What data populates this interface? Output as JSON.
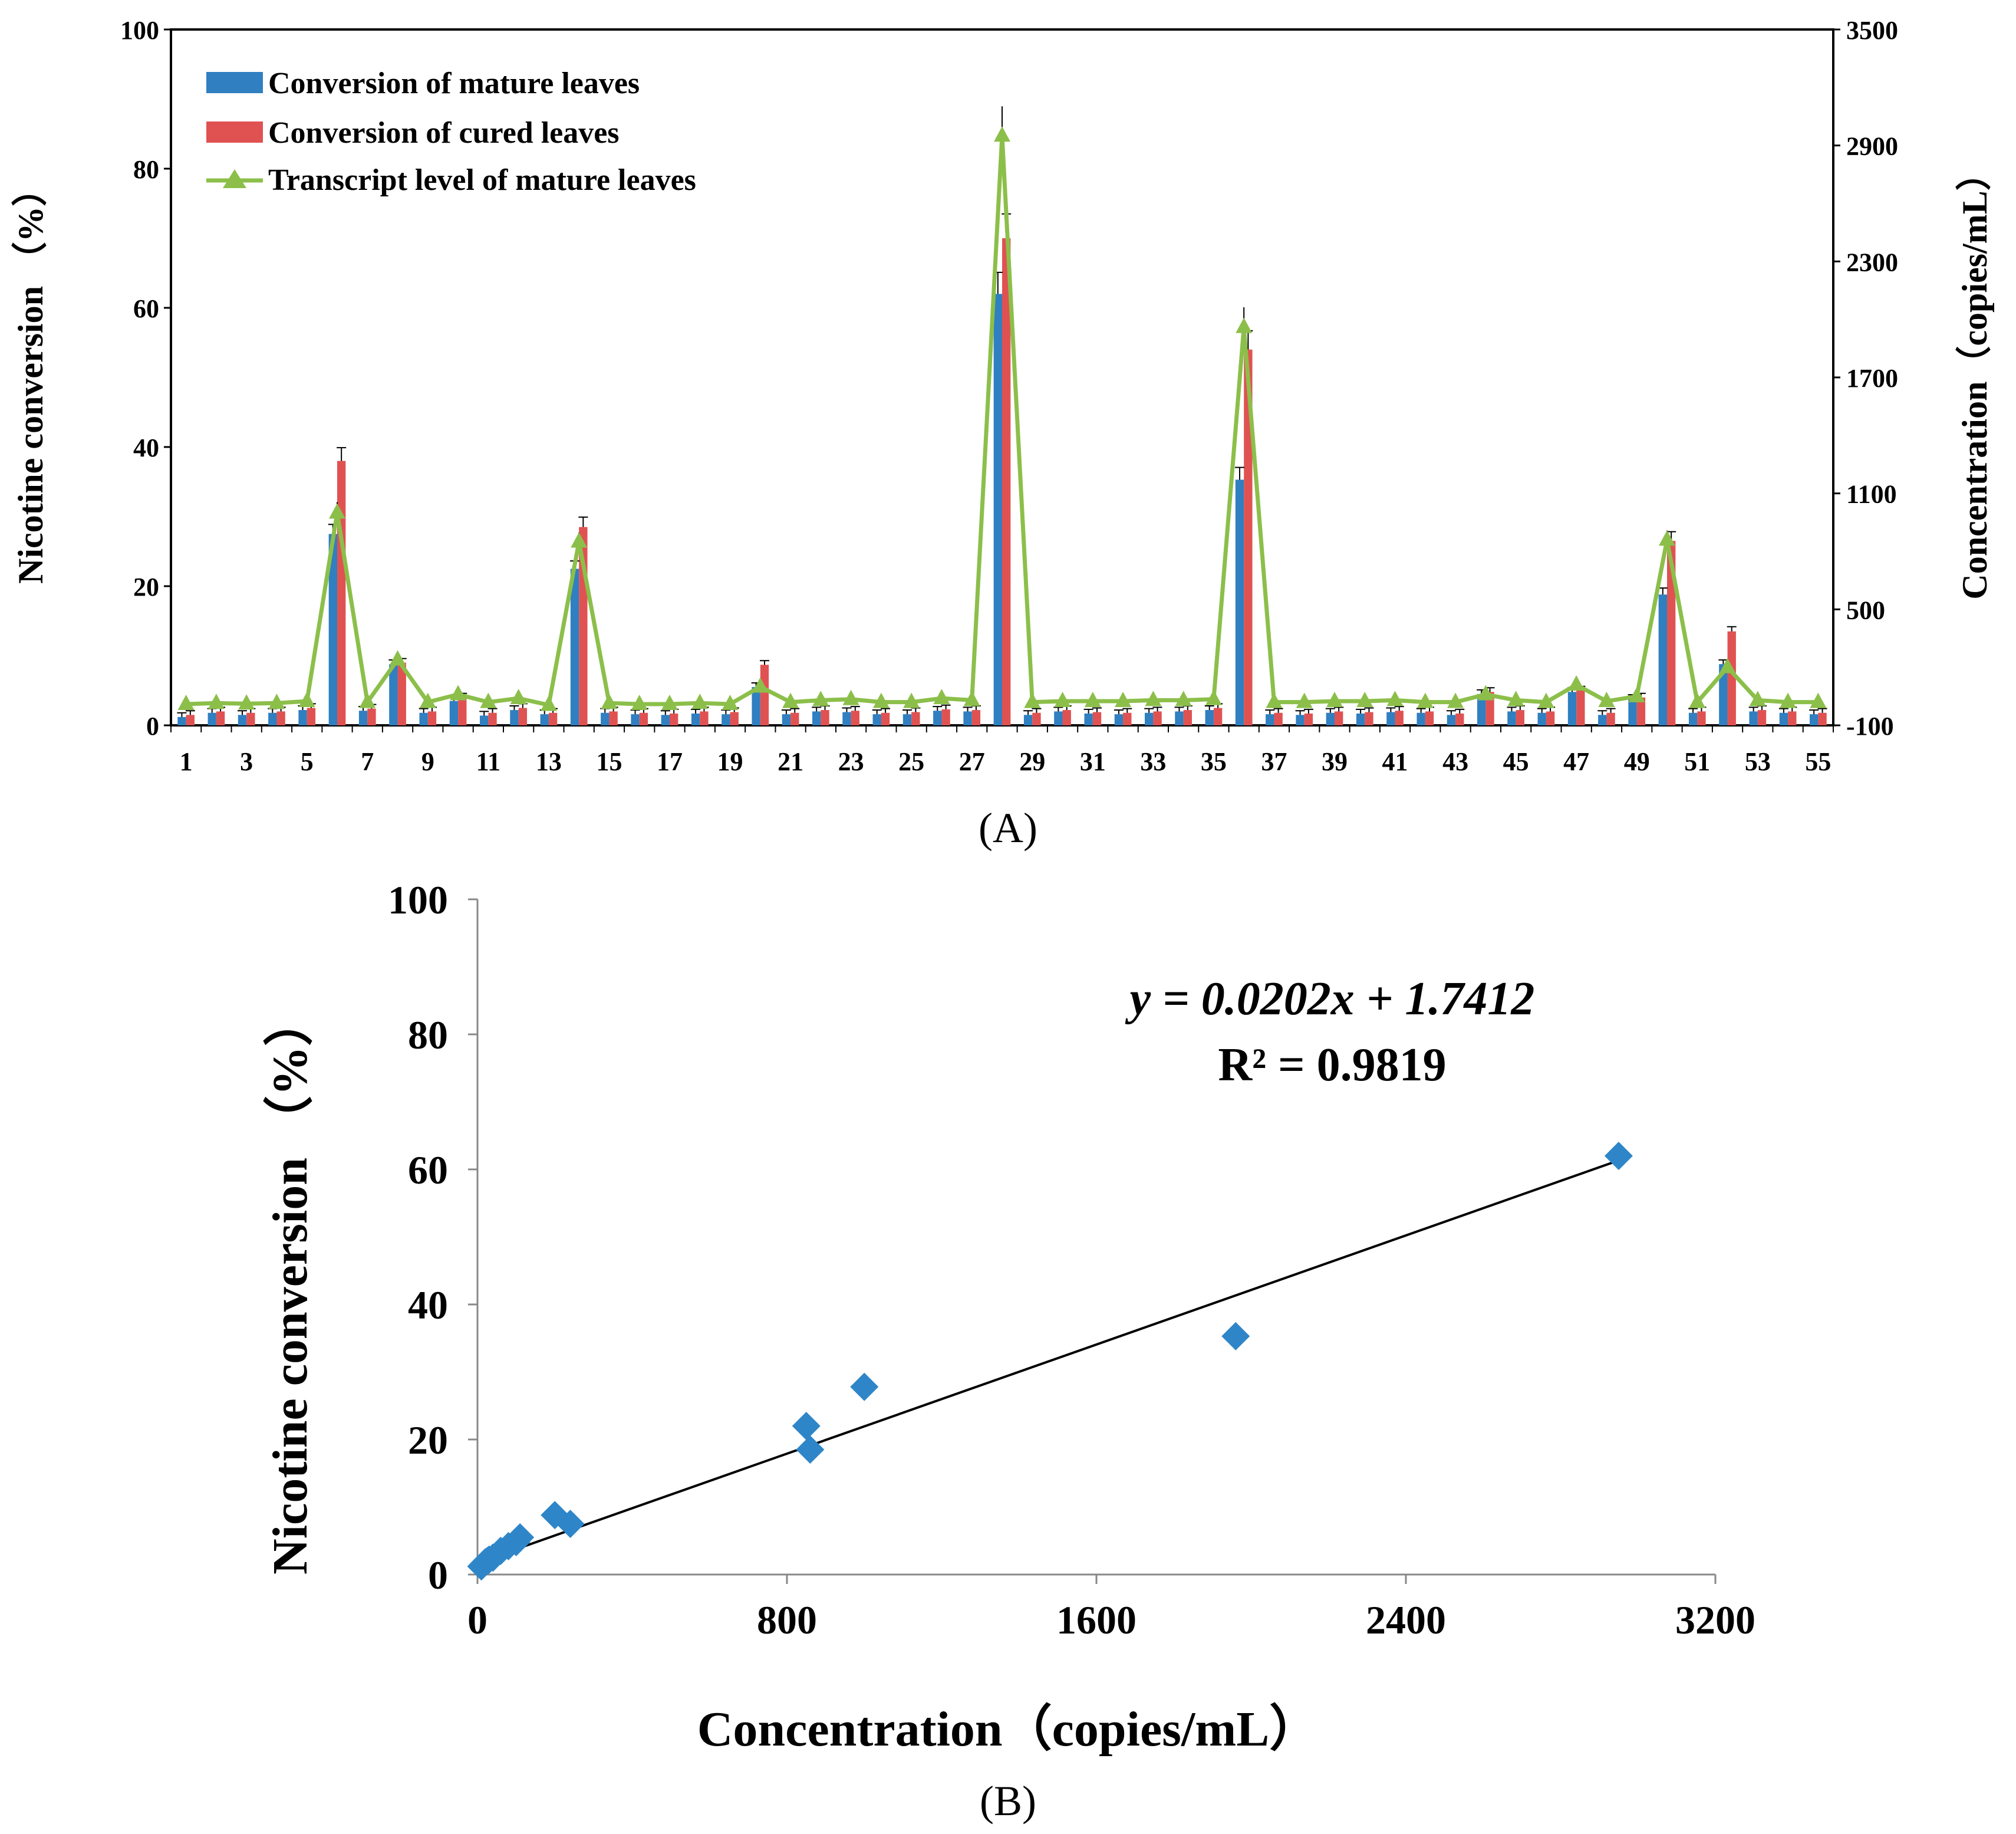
{
  "panels": {
    "a": "(A)",
    "b": "(B)"
  },
  "colors": {
    "mature": "#2f7fc1",
    "cured": "#e05252",
    "transcript": "#8cbf4a",
    "scatter": "#2e86c8"
  },
  "chart_data": [
    {
      "type": "bar",
      "id": "A",
      "title": "",
      "xlabel": "",
      "ylabel": "Nicotine conversion （%）",
      "y2label": "Concentration（copies/mL）",
      "ylim": [
        0,
        100
      ],
      "y2lim": [
        -100,
        3500
      ],
      "yticks": [
        "0",
        "20",
        "40",
        "60",
        "80",
        "100"
      ],
      "y2ticks": [
        "-100",
        "500",
        "1100",
        "1700",
        "2300",
        "2900",
        "3500"
      ],
      "categories": [
        "1",
        "2",
        "3",
        "4",
        "5",
        "6",
        "7",
        "8",
        "9",
        "10",
        "11",
        "12",
        "13",
        "14",
        "15",
        "16",
        "17",
        "18",
        "19",
        "20",
        "21",
        "22",
        "23",
        "24",
        "25",
        "26",
        "27",
        "28",
        "29",
        "30",
        "31",
        "32",
        "33",
        "34",
        "35",
        "36",
        "37",
        "38",
        "39",
        "40",
        "41",
        "42",
        "43",
        "44",
        "45",
        "46",
        "47",
        "48",
        "49",
        "50",
        "51",
        "52",
        "53",
        "54",
        "55"
      ],
      "xtick_labels": [
        "1",
        "3",
        "5",
        "7",
        "9",
        "11",
        "13",
        "15",
        "17",
        "19",
        "21",
        "23",
        "25",
        "27",
        "29",
        "31",
        "33",
        "35",
        "37",
        "39",
        "41",
        "43",
        "45",
        "47",
        "49",
        "51",
        "53",
        "55"
      ],
      "legend": [
        "Conversion of mature leaves",
        "Conversion of cured leaves",
        "Transcript level of mature leaves"
      ],
      "series": [
        {
          "name": "Conversion of mature leaves",
          "axis": "left",
          "values": [
            1.2,
            1.8,
            1.5,
            1.8,
            2.2,
            27.5,
            2.1,
            8.8,
            1.8,
            3.5,
            1.4,
            2.2,
            1.6,
            22.5,
            1.8,
            1.6,
            1.5,
            1.7,
            1.6,
            5.5,
            1.6,
            2.0,
            1.9,
            1.6,
            1.6,
            2.1,
            2.0,
            62.0,
            1.5,
            2.0,
            1.7,
            1.6,
            1.8,
            2.0,
            2.2,
            35.3,
            1.6,
            1.5,
            1.8,
            1.7,
            1.9,
            1.8,
            1.5,
            4.5,
            2.0,
            1.8,
            4.8,
            1.5,
            3.8,
            18.8,
            1.8,
            8.8,
            2.0,
            1.8,
            1.6
          ]
        },
        {
          "name": "Conversion of cured leaves",
          "axis": "left",
          "values": [
            1.5,
            2.0,
            1.8,
            2.0,
            2.5,
            38.0,
            2.4,
            9.0,
            2.0,
            4.0,
            1.8,
            2.5,
            1.8,
            28.5,
            2.0,
            1.8,
            1.7,
            2.0,
            1.9,
            8.7,
            1.8,
            2.2,
            2.1,
            1.8,
            1.9,
            2.3,
            2.2,
            70.0,
            1.8,
            2.2,
            1.9,
            1.8,
            2.0,
            2.2,
            2.5,
            54.0,
            1.8,
            1.7,
            2.0,
            1.9,
            2.1,
            2.0,
            1.7,
            4.8,
            2.2,
            2.0,
            5.0,
            1.8,
            4.0,
            26.5,
            2.0,
            13.5,
            2.2,
            2.0,
            1.8
          ]
        },
        {
          "name": "Transcript level of mature leaves",
          "axis": "right",
          "values": [
            10,
            15,
            12,
            15,
            25,
            1000,
            20,
            240,
            20,
            60,
            20,
            40,
            5,
            850,
            15,
            10,
            10,
            15,
            10,
            100,
            20,
            30,
            35,
            20,
            20,
            40,
            30,
            2950,
            20,
            25,
            25,
            25,
            30,
            30,
            35,
            1960,
            20,
            20,
            25,
            25,
            30,
            20,
            20,
            60,
            30,
            20,
            110,
            25,
            50,
            860,
            20,
            200,
            30,
            20,
            20
          ]
        }
      ]
    },
    {
      "type": "scatter",
      "id": "B",
      "title": "",
      "xlabel": "Concentration（copies/mL）",
      "ylabel": "Nicotine conversion （%）",
      "xlim": [
        0,
        3200
      ],
      "ylim": [
        0,
        100
      ],
      "xticks": [
        "0",
        "800",
        "1600",
        "2400",
        "3200"
      ],
      "yticks": [
        "0",
        "20",
        "40",
        "60",
        "80",
        "100"
      ],
      "equation": "y = 0.0202x + 1.7412",
      "r2": "R² = 0.9819",
      "trendline": {
        "slope": 0.0202,
        "intercept": 1.7412,
        "x_range": [
          0,
          2950
        ]
      },
      "points": [
        [
          10,
          1.2
        ],
        [
          15,
          1.5
        ],
        [
          20,
          1.8
        ],
        [
          25,
          2.0
        ],
        [
          30,
          2.2
        ],
        [
          40,
          2.5
        ],
        [
          60,
          3.5
        ],
        [
          80,
          4.2
        ],
        [
          100,
          4.8
        ],
        [
          110,
          5.5
        ],
        [
          200,
          8.8
        ],
        [
          240,
          7.5
        ],
        [
          860,
          18.5
        ],
        [
          850,
          22.0
        ],
        [
          1000,
          27.8
        ],
        [
          1960,
          35.3
        ],
        [
          2950,
          62.0
        ]
      ]
    }
  ]
}
